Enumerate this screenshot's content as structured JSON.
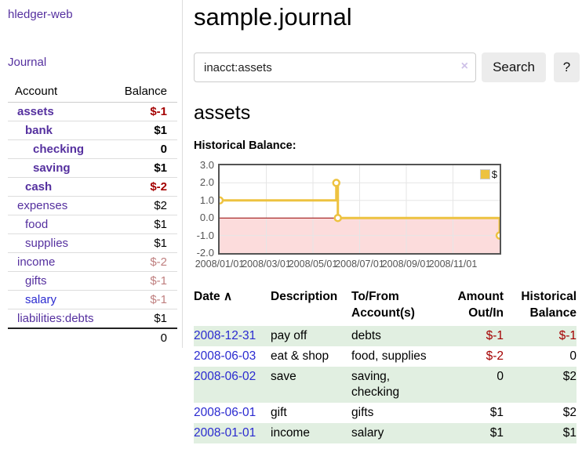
{
  "app_title": "hledger-web",
  "nav": {
    "journal_label": "Journal"
  },
  "sidebar": {
    "accounts_table": {
      "headers": {
        "account": "Account",
        "balance": "Balance"
      },
      "rows": [
        {
          "name": "assets",
          "balance": "$-1",
          "indent": 0,
          "bold": true,
          "balance_class": "neg",
          "link_class": ""
        },
        {
          "name": "bank",
          "balance": "$1",
          "indent": 1,
          "bold": true,
          "balance_class": "",
          "link_class": ""
        },
        {
          "name": "checking",
          "balance": "0",
          "indent": 2,
          "bold": true,
          "balance_class": "",
          "link_class": ""
        },
        {
          "name": "saving",
          "balance": "$1",
          "indent": 2,
          "bold": true,
          "balance_class": "",
          "link_class": ""
        },
        {
          "name": "cash",
          "balance": "$-2",
          "indent": 1,
          "bold": true,
          "balance_class": "neg",
          "link_class": ""
        },
        {
          "name": "expenses",
          "balance": "$2",
          "indent": 0,
          "bold": false,
          "balance_class": "",
          "link_class": ""
        },
        {
          "name": "food",
          "balance": "$1",
          "indent": 1,
          "bold": false,
          "balance_class": "",
          "link_class": ""
        },
        {
          "name": "supplies",
          "balance": "$1",
          "indent": 1,
          "bold": false,
          "balance_class": "",
          "link_class": ""
        },
        {
          "name": "income",
          "balance": "$-2",
          "indent": 0,
          "bold": false,
          "balance_class": "negmuted",
          "link_class": ""
        },
        {
          "name": "gifts",
          "balance": "$-1",
          "indent": 1,
          "bold": false,
          "balance_class": "negmuted",
          "link_class": ""
        },
        {
          "name": "salary",
          "balance": "$-1",
          "indent": 1,
          "bold": false,
          "balance_class": "negmuted",
          "link_class": "blue"
        },
        {
          "name": "liabilities:debts",
          "balance": "$1",
          "indent": 0,
          "bold": false,
          "balance_class": "",
          "link_class": ""
        }
      ],
      "total": "0"
    }
  },
  "header": {
    "title": "sample.journal"
  },
  "search": {
    "query": "inacct:assets",
    "clear_icon": "×",
    "button_label": "Search",
    "help_label": "?"
  },
  "account_page": {
    "heading": "assets",
    "chart_label": "Historical Balance:"
  },
  "chart_data": {
    "type": "line",
    "step": true,
    "title": "Historical Balance",
    "series": [
      {
        "name": "$",
        "color": "#edc240",
        "points": [
          [
            "2008-01-01",
            1
          ],
          [
            "2008-06-01",
            2
          ],
          [
            "2008-06-03",
            0
          ],
          [
            "2008-12-31",
            -1
          ]
        ]
      }
    ],
    "x_ticks": [
      {
        "label": "2008/01/01",
        "month": 0
      },
      {
        "label": "2008/03/01",
        "month": 2
      },
      {
        "label": "2008/05/01",
        "month": 4
      },
      {
        "label": "2008/07/01",
        "month": 6
      },
      {
        "label": "2008/09/01",
        "month": 8
      },
      {
        "label": "2008/11/01",
        "month": 10
      }
    ],
    "y_ticks": [
      3.0,
      2.0,
      1.0,
      0.0,
      -1.0,
      -2.0
    ],
    "ylim": [
      -2,
      3
    ],
    "x_months_total": 12,
    "grid": true,
    "legend_position": "top-right",
    "grid_color": "#e6e6e6",
    "negative_region_color": "#fcdcdc",
    "zero_line_color": "#940000",
    "border_color": "#545454"
  },
  "register": {
    "headers": [
      "Date",
      "Description",
      "To/From Account(s)",
      "Amount Out/In",
      "Historical Balance"
    ],
    "sort_indicator": "∧",
    "rows": [
      {
        "date": "2008-12-31",
        "description": "pay off",
        "account_lines": [
          "debts"
        ],
        "amount": "$-1",
        "amount_negative": true,
        "balance": "$-1",
        "balance_negative": true
      },
      {
        "date": "2008-06-03",
        "description": "eat & shop",
        "account_lines": [
          "food, supplies"
        ],
        "amount": "$-2",
        "amount_negative": true,
        "balance": "0",
        "balance_negative": false
      },
      {
        "date": "2008-06-02",
        "description": "save",
        "account_lines": [
          "saving,",
          "checking"
        ],
        "amount": "0",
        "amount_negative": false,
        "balance": "$2",
        "balance_negative": false
      },
      {
        "date": "2008-06-01",
        "description": "gift",
        "account_lines": [
          "gifts"
        ],
        "amount": "$1",
        "amount_negative": false,
        "balance": "$2",
        "balance_negative": false
      },
      {
        "date": "2008-01-01",
        "description": "income",
        "account_lines": [
          "salary"
        ],
        "amount": "$1",
        "amount_negative": false,
        "balance": "$1",
        "balance_negative": false
      }
    ]
  },
  "colors": {
    "link_purple": "#55309f",
    "link_blue": "#2a2ad0",
    "negative_strong": "#a40000",
    "negative_muted": "#bf7f7f",
    "row_green": "#e1efe1",
    "chart_gold": "#edc240",
    "button_bg": "#ececec"
  }
}
